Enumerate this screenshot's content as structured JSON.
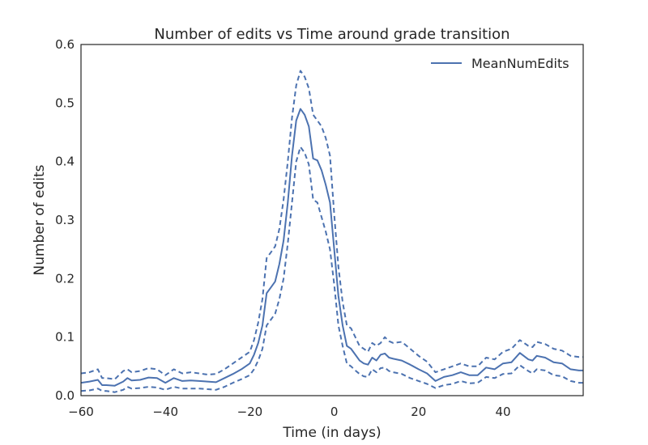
{
  "chart_data": {
    "type": "line",
    "title": "Number of edits vs Time around grade transition",
    "xlabel": "Time (in days)",
    "ylabel": "Number of edits",
    "xlim": [
      -60,
      59
    ],
    "ylim": [
      0,
      0.6
    ],
    "xticks": [
      -60,
      -40,
      -20,
      0,
      20,
      40
    ],
    "xtick_labels": [
      "−60",
      "−40",
      "−20",
      "0",
      "20",
      "40"
    ],
    "yticks": [
      0,
      0.1,
      0.2,
      0.3,
      0.4,
      0.5,
      0.6
    ],
    "ytick_labels": [
      "0.0",
      "0.1",
      "0.2",
      "0.3",
      "0.4",
      "0.5",
      "0.6"
    ],
    "grid": false,
    "legend_placement": "top-right",
    "line_color": "#4c72b0",
    "series": [
      {
        "name": "MeanNumEdits",
        "style": "solid",
        "in_legend": true,
        "x": [
          -60,
          -58,
          -56,
          -55,
          -54,
          -52,
          -50,
          -49,
          -48,
          -46,
          -44,
          -42,
          -40,
          -38,
          -36,
          -34,
          -32,
          -30,
          -28,
          -26,
          -24,
          -22,
          -20,
          -19,
          -18,
          -17,
          -16,
          -15,
          -14,
          -13,
          -12,
          -11,
          -10,
          -9,
          -8,
          -7,
          -6,
          -5,
          -4,
          -3,
          -2,
          -1,
          0,
          1,
          2,
          3,
          4,
          5,
          6,
          7,
          8,
          9,
          10,
          11,
          12,
          13,
          14,
          16,
          18,
          20,
          22,
          24,
          26,
          28,
          30,
          32,
          34,
          36,
          38,
          40,
          42,
          44,
          46,
          47,
          48,
          50,
          52,
          54,
          56,
          58,
          59
        ],
        "values": [
          0.022,
          0.024,
          0.027,
          0.018,
          0.018,
          0.017,
          0.024,
          0.03,
          0.026,
          0.027,
          0.031,
          0.03,
          0.022,
          0.03,
          0.025,
          0.026,
          0.025,
          0.024,
          0.023,
          0.03,
          0.037,
          0.045,
          0.055,
          0.07,
          0.09,
          0.12,
          0.175,
          0.185,
          0.195,
          0.225,
          0.265,
          0.33,
          0.41,
          0.47,
          0.49,
          0.48,
          0.46,
          0.405,
          0.402,
          0.385,
          0.36,
          0.33,
          0.25,
          0.17,
          0.12,
          0.085,
          0.08,
          0.07,
          0.06,
          0.055,
          0.053,
          0.065,
          0.06,
          0.07,
          0.072,
          0.065,
          0.063,
          0.06,
          0.053,
          0.045,
          0.038,
          0.025,
          0.032,
          0.035,
          0.04,
          0.035,
          0.035,
          0.048,
          0.045,
          0.055,
          0.057,
          0.073,
          0.062,
          0.06,
          0.068,
          0.065,
          0.057,
          0.055,
          0.045,
          0.043,
          0.043
        ]
      },
      {
        "name": "",
        "style": "dashed",
        "in_legend": false,
        "x": [
          -60,
          -58,
          -56,
          -55,
          -54,
          -52,
          -50,
          -49,
          -48,
          -46,
          -44,
          -42,
          -40,
          -38,
          -36,
          -34,
          -32,
          -30,
          -28,
          -26,
          -24,
          -22,
          -20,
          -19,
          -18,
          -17,
          -16,
          -15,
          -14,
          -13,
          -12,
          -11,
          -10,
          -9,
          -8,
          -7,
          -6,
          -5,
          -4,
          -3,
          -2,
          -1,
          0,
          1,
          2,
          3,
          4,
          5,
          6,
          7,
          8,
          9,
          10,
          11,
          12,
          13,
          14,
          16,
          18,
          20,
          22,
          24,
          26,
          28,
          30,
          32,
          34,
          36,
          38,
          40,
          42,
          44,
          46,
          47,
          48,
          50,
          52,
          54,
          56,
          58,
          59
        ],
        "values": [
          0.038,
          0.04,
          0.045,
          0.03,
          0.03,
          0.028,
          0.042,
          0.045,
          0.04,
          0.042,
          0.047,
          0.045,
          0.035,
          0.045,
          0.038,
          0.04,
          0.038,
          0.036,
          0.037,
          0.045,
          0.055,
          0.065,
          0.075,
          0.095,
          0.125,
          0.165,
          0.235,
          0.245,
          0.255,
          0.285,
          0.335,
          0.4,
          0.475,
          0.53,
          0.555,
          0.545,
          0.525,
          0.48,
          0.47,
          0.46,
          0.44,
          0.41,
          0.31,
          0.22,
          0.16,
          0.12,
          0.115,
          0.1,
          0.085,
          0.08,
          0.075,
          0.09,
          0.085,
          0.09,
          0.1,
          0.093,
          0.09,
          0.092,
          0.08,
          0.068,
          0.058,
          0.04,
          0.045,
          0.05,
          0.055,
          0.05,
          0.05,
          0.065,
          0.062,
          0.075,
          0.08,
          0.095,
          0.085,
          0.083,
          0.092,
          0.088,
          0.08,
          0.077,
          0.068,
          0.066,
          0.066
        ]
      },
      {
        "name": "",
        "style": "dashed",
        "in_legend": false,
        "x": [
          -60,
          -58,
          -56,
          -55,
          -54,
          -52,
          -50,
          -49,
          -48,
          -46,
          -44,
          -42,
          -40,
          -38,
          -36,
          -34,
          -32,
          -30,
          -28,
          -26,
          -24,
          -22,
          -20,
          -19,
          -18,
          -17,
          -16,
          -15,
          -14,
          -13,
          -12,
          -11,
          -10,
          -9,
          -8,
          -7,
          -6,
          -5,
          -4,
          -3,
          -2,
          -1,
          0,
          1,
          2,
          3,
          4,
          5,
          6,
          7,
          8,
          9,
          10,
          11,
          12,
          13,
          14,
          16,
          18,
          20,
          22,
          24,
          26,
          28,
          30,
          32,
          34,
          36,
          38,
          40,
          42,
          44,
          46,
          47,
          48,
          50,
          52,
          54,
          56,
          58,
          59
        ],
        "values": [
          0.008,
          0.009,
          0.012,
          0.008,
          0.008,
          0.006,
          0.01,
          0.015,
          0.012,
          0.013,
          0.015,
          0.014,
          0.01,
          0.015,
          0.012,
          0.012,
          0.012,
          0.011,
          0.01,
          0.015,
          0.022,
          0.028,
          0.035,
          0.045,
          0.06,
          0.08,
          0.12,
          0.13,
          0.14,
          0.165,
          0.2,
          0.26,
          0.33,
          0.4,
          0.425,
          0.415,
          0.395,
          0.335,
          0.33,
          0.305,
          0.28,
          0.25,
          0.19,
          0.12,
          0.085,
          0.055,
          0.05,
          0.043,
          0.037,
          0.033,
          0.032,
          0.045,
          0.04,
          0.047,
          0.048,
          0.042,
          0.04,
          0.037,
          0.03,
          0.025,
          0.02,
          0.013,
          0.018,
          0.02,
          0.025,
          0.021,
          0.022,
          0.032,
          0.03,
          0.037,
          0.038,
          0.052,
          0.042,
          0.038,
          0.045,
          0.043,
          0.035,
          0.033,
          0.025,
          0.022,
          0.022
        ]
      }
    ]
  }
}
